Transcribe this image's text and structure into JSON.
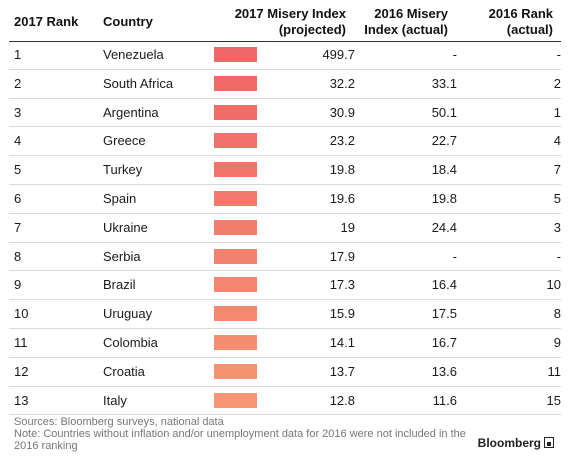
{
  "headers": {
    "rank2017": "2017 Rank",
    "country": "Country",
    "mi2017": [
      "2017 Misery Index",
      "(projected)"
    ],
    "mi2016": [
      "2016 Misery",
      "Index (actual)"
    ],
    "rank2016": [
      "2016 Rank",
      "(actual)"
    ]
  },
  "chart_data": {
    "type": "table",
    "columns": [
      "2017 Rank",
      "Country",
      "2017 Misery Index (projected)",
      "2016 Misery Index (actual)",
      "2016 Rank (actual)"
    ],
    "rows": [
      {
        "rank2017": "1",
        "country": "Venezuela",
        "mi2017": "499.7",
        "mi2016": "-",
        "rank2016": "-",
        "bar_color": "#ef6767"
      },
      {
        "rank2017": "2",
        "country": "South Africa",
        "mi2017": "32.2",
        "mi2016": "33.1",
        "rank2016": "2",
        "bar_color": "#ef6a67"
      },
      {
        "rank2017": "3",
        "country": "Argentina",
        "mi2017": "30.9",
        "mi2016": "50.1",
        "rank2016": "1",
        "bar_color": "#f06d68"
      },
      {
        "rank2017": "4",
        "country": "Greece",
        "mi2017": "23.2",
        "mi2016": "22.7",
        "rank2016": "4",
        "bar_color": "#f07169"
      },
      {
        "rank2017": "5",
        "country": "Turkey",
        "mi2017": "19.8",
        "mi2016": "18.4",
        "rank2016": "7",
        "bar_color": "#f1756a"
      },
      {
        "rank2017": "6",
        "country": "Spain",
        "mi2017": "19.6",
        "mi2016": "19.8",
        "rank2016": "5",
        "bar_color": "#f2796b"
      },
      {
        "rank2017": "7",
        "country": "Ukraine",
        "mi2017": "19",
        "mi2016": "24.4",
        "rank2016": "3",
        "bar_color": "#f27d6c"
      },
      {
        "rank2017": "8",
        "country": "Serbia",
        "mi2017": "17.9",
        "mi2016": "-",
        "rank2016": "-",
        "bar_color": "#f3816d"
      },
      {
        "rank2017": "9",
        "country": "Brazil",
        "mi2017": "17.3",
        "mi2016": "16.4",
        "rank2016": "10",
        "bar_color": "#f4856e"
      },
      {
        "rank2017": "10",
        "country": "Uruguay",
        "mi2017": "15.9",
        "mi2016": "17.5",
        "rank2016": "8",
        "bar_color": "#f4896f"
      },
      {
        "rank2017": "11",
        "country": "Colombia",
        "mi2017": "14.1",
        "mi2016": "16.7",
        "rank2016": "9",
        "bar_color": "#f58d70"
      },
      {
        "rank2017": "12",
        "country": "Croatia",
        "mi2017": "13.7",
        "mi2016": "13.6",
        "rank2016": "11",
        "bar_color": "#f69172"
      },
      {
        "rank2017": "13",
        "country": "Italy",
        "mi2017": "12.8",
        "mi2016": "11.6",
        "rank2016": "15",
        "bar_color": "#f79674"
      }
    ]
  },
  "footer": {
    "sources": "Sources: Bloomberg surveys, national data",
    "note": "Note: Countries without inflation and/or unemployment data for 2016 were not included in the 2016 ranking",
    "brand": "Bloomberg"
  }
}
